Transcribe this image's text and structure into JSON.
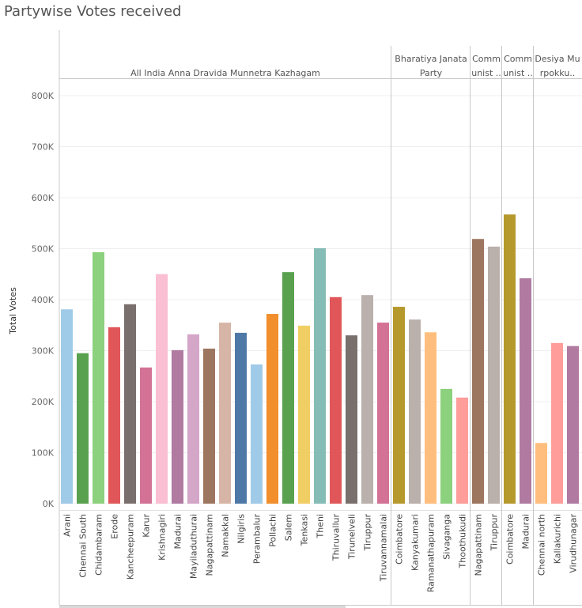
{
  "title": "Partywise Votes received",
  "chart_data": {
    "type": "bar",
    "title": "Partywise Votes received",
    "ylabel": "Total Votes",
    "xlabel": "",
    "ylim": [
      0,
      830000
    ],
    "yticks": [
      0,
      100000,
      200000,
      300000,
      400000,
      500000,
      600000,
      700000,
      800000
    ],
    "ytick_labels": [
      "0K",
      "100K",
      "200K",
      "300K",
      "400K",
      "500K",
      "600K",
      "700K",
      "800K"
    ],
    "grid": "horizontal",
    "legend": "none",
    "panes": [
      {
        "header_lines": [
          "All India Anna Dravida Munnetra Kazhagam"
        ],
        "categories": [
          "Arani",
          "Chennai South",
          "Chidambaram",
          "Erode",
          "Kancheepuram",
          "Karur",
          "Krishnagiri",
          "Madurai",
          "Mayiladuthurai",
          "Nagapattinam",
          "Namakkal",
          "Nilgiris",
          "Perambalur",
          "Pollachi",
          "Salem",
          "Tenkasi",
          "Theni",
          "Thiruvallur",
          "Tirunelveli",
          "Tiruppur",
          "Tiruvannamalai"
        ],
        "values": [
          381000,
          295000,
          493000,
          346000,
          391000,
          267000,
          450000,
          301000,
          332000,
          304000,
          355000,
          335000,
          273000,
          372000,
          454000,
          349000,
          501000,
          405000,
          330000,
          409000,
          355000
        ],
        "colors": [
          "#a0cbe8",
          "#59a14f",
          "#8cd17d",
          "#e15759",
          "#79706e",
          "#d37295",
          "#fabfd2",
          "#b07aa1",
          "#d4a6c8",
          "#9d7660",
          "#d7b5a6",
          "#4e79a7",
          "#a0cbe8",
          "#f28e2b",
          "#59a14f",
          "#f1ce63",
          "#86bcb6",
          "#e15759",
          "#79706e",
          "#bab0ac",
          "#d37295"
        ]
      },
      {
        "header_lines": [
          "Bharatiya Janata",
          "Party"
        ],
        "categories": [
          "Coimbatore",
          "Kanyakumari",
          "Ramanathapuram",
          "Sivaganga",
          "Thoothukudi"
        ],
        "values": [
          386000,
          361000,
          336000,
          225000,
          208000
        ],
        "colors": [
          "#b6992d",
          "#bab0ac",
          "#ffbe7d",
          "#8cd17d",
          "#ff9d9a"
        ]
      },
      {
        "header_lines": [
          "Comm",
          "unist .."
        ],
        "categories": [
          "Nagapattinam",
          "Tiruppur"
        ],
        "values": [
          519000,
          504000
        ],
        "colors": [
          "#9d7660",
          "#bab0ac"
        ]
      },
      {
        "header_lines": [
          "Comm",
          "unist .."
        ],
        "categories": [
          "Coimbatore",
          "Madurai"
        ],
        "values": [
          567000,
          442000
        ],
        "colors": [
          "#b6992d",
          "#b07aa1"
        ]
      },
      {
        "header_lines": [
          "Desiya Mu",
          "rpokku.."
        ],
        "categories": [
          "Chennai north",
          "Kallakurichi",
          "Virudhunagar"
        ],
        "values": [
          119000,
          315000,
          309000
        ],
        "colors": [
          "#ffbe7d",
          "#ff9d9a",
          "#b07aa1"
        ]
      }
    ]
  }
}
